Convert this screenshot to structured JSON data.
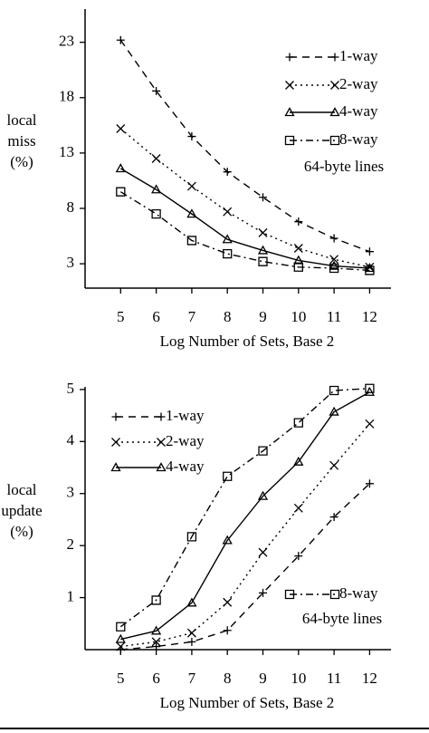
{
  "chart_data": [
    {
      "type": "line",
      "ylabel": [
        "local",
        "miss",
        "(%)"
      ],
      "xlabel": "Log Number of Sets, Base 2",
      "annotation": "64-byte lines",
      "x": [
        5,
        6,
        7,
        8,
        9,
        10,
        11,
        12
      ],
      "xlim": [
        4,
        12.6
      ],
      "xticks": [
        5,
        6,
        7,
        8,
        9,
        10,
        11,
        12
      ],
      "ylim": [
        0.8,
        26
      ],
      "yticks": [
        3,
        8,
        13,
        18,
        23
      ],
      "series": [
        {
          "name": "1-way",
          "color": "#000000",
          "marker": "plus",
          "dash": "dashed",
          "values": [
            23.2,
            18.6,
            14.5,
            11.3,
            9.0,
            6.8,
            5.3,
            4.1
          ]
        },
        {
          "name": "2-way",
          "color": "#000000",
          "marker": "x",
          "dash": "dotted",
          "values": [
            15.2,
            12.5,
            10.0,
            7.7,
            5.8,
            4.4,
            3.4,
            2.7
          ]
        },
        {
          "name": "4-way",
          "color": "#000000",
          "marker": "triangle",
          "dash": "solid",
          "values": [
            11.6,
            9.7,
            7.5,
            5.2,
            4.2,
            3.3,
            2.8,
            2.6
          ]
        },
        {
          "name": "8-way",
          "color": "#000000",
          "marker": "square",
          "dash": "dashdot",
          "values": [
            9.5,
            7.5,
            5.1,
            3.9,
            3.2,
            2.7,
            2.6,
            2.4
          ]
        }
      ]
    },
    {
      "type": "line",
      "ylabel": [
        "local",
        "update",
        "(%)"
      ],
      "xlabel": "Log Number of Sets, Base 2",
      "annotation": "64-byte lines",
      "x": [
        5,
        6,
        7,
        8,
        9,
        10,
        11,
        12
      ],
      "xlim": [
        4,
        12.6
      ],
      "xticks": [
        5,
        6,
        7,
        8,
        9,
        10,
        11,
        12
      ],
      "ylim": [
        0,
        5.05
      ],
      "yticks": [
        1,
        2,
        3,
        4,
        5
      ],
      "series": [
        {
          "name": "1-way",
          "color": "#000000",
          "marker": "plus",
          "dash": "dashed",
          "values": [
            0.0,
            0.06,
            0.15,
            0.37,
            1.09,
            1.8,
            2.55,
            3.19
          ]
        },
        {
          "name": "2-way",
          "color": "#000000",
          "marker": "x",
          "dash": "dotted",
          "values": [
            0.06,
            0.15,
            0.32,
            0.91,
            1.87,
            2.72,
            3.54,
            4.34
          ]
        },
        {
          "name": "4-way",
          "color": "#000000",
          "marker": "triangle",
          "dash": "solid",
          "values": [
            0.2,
            0.36,
            0.9,
            2.1,
            2.95,
            3.61,
            4.57,
            4.95
          ]
        },
        {
          "name": "8-way",
          "color": "#000000",
          "marker": "square",
          "dash": "dashdot",
          "values": [
            0.44,
            0.95,
            2.17,
            3.33,
            3.82,
            4.36,
            4.98,
            5.02
          ]
        }
      ]
    }
  ]
}
